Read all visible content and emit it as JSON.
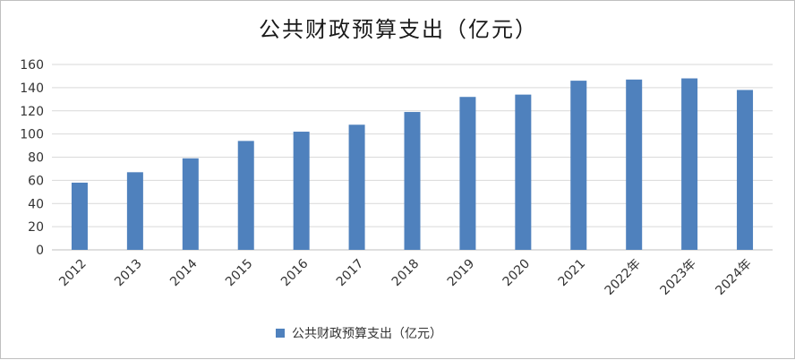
{
  "chart_data": {
    "type": "bar",
    "title": "公共财政预算支出（亿元）",
    "categories": [
      "2012",
      "2013",
      "2014",
      "2015",
      "2016",
      "2017",
      "2018",
      "2019",
      "2020",
      "2021",
      "2022年",
      "2023年",
      "2024年"
    ],
    "series": [
      {
        "name": "公共财政预算支出（亿元）",
        "values": [
          58,
          67,
          79,
          94,
          102,
          108,
          119,
          132,
          134,
          146,
          147,
          148,
          138
        ],
        "color": "#4F81BD"
      }
    ],
    "ylim": [
      0,
      160
    ],
    "yticks": [
      0,
      20,
      40,
      60,
      80,
      100,
      120,
      140,
      160
    ],
    "grid": true,
    "legend": "bottom"
  }
}
